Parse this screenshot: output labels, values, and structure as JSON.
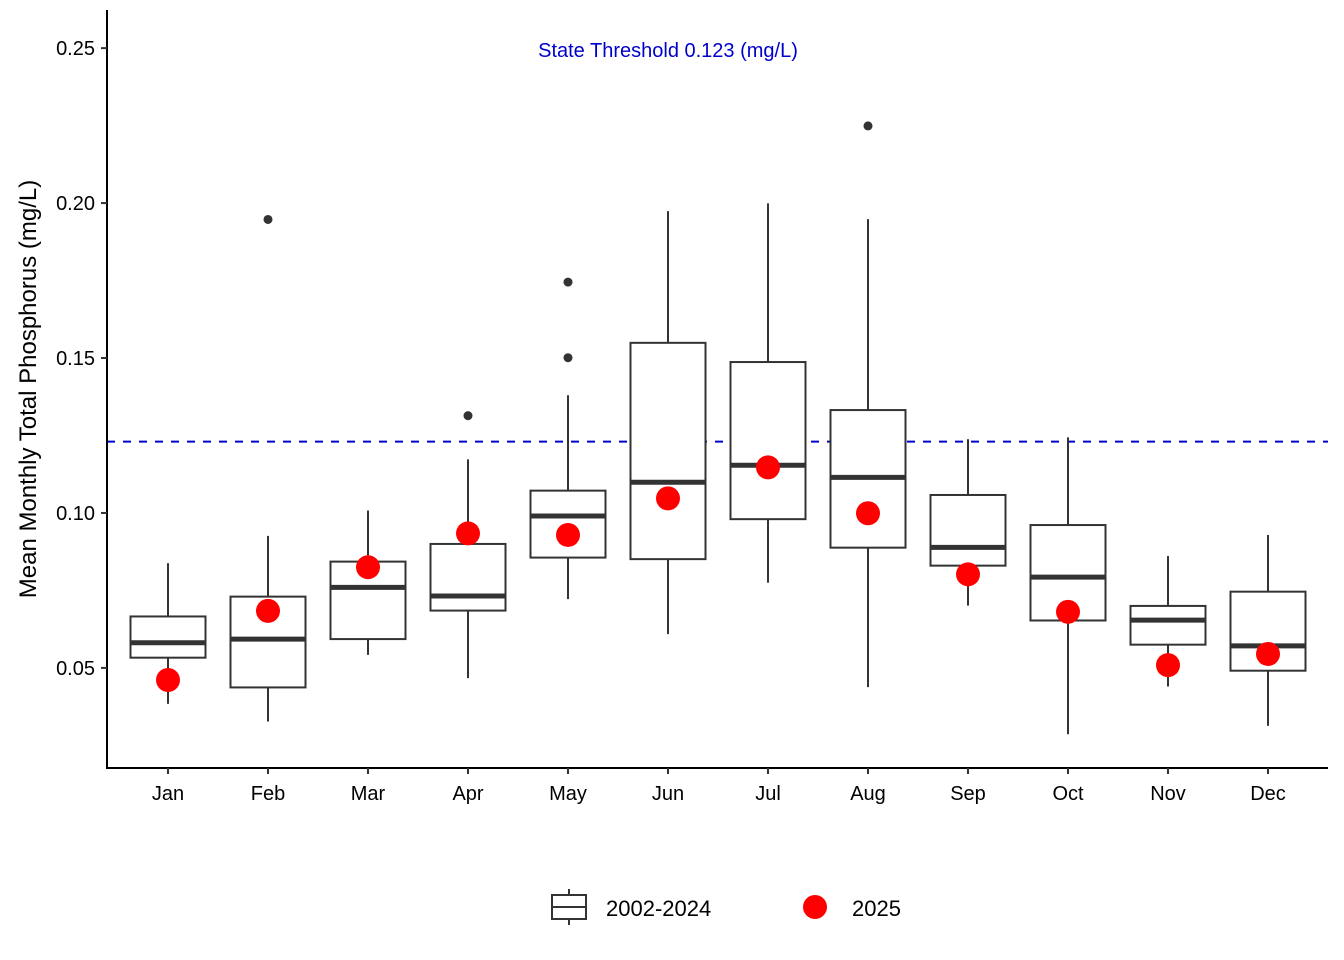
{
  "chart_data": {
    "type": "boxplot",
    "title": "",
    "xlabel": "",
    "ylabel": "Mean Monthly Total Phosphorus (mg/L)",
    "ylim": [
      0.0177,
      0.2623
    ],
    "yticks": [
      0.05,
      0.1,
      0.15,
      0.2,
      0.25
    ],
    "ytick_labels": [
      "0.05",
      "0.10",
      "0.15",
      "0.20",
      "0.25"
    ],
    "grid": false,
    "categories": [
      "Jan",
      "Feb",
      "Mar",
      "Apr",
      "May",
      "Jun",
      "Jul",
      "Aug",
      "Sep",
      "Oct",
      "Nov",
      "Dec"
    ],
    "series": [
      {
        "name": "2002-2024",
        "kind": "box",
        "color": "#333333",
        "boxes": [
          {
            "whisker_low": 0.0384,
            "q1": 0.0533,
            "median": 0.0581,
            "q3": 0.0666,
            "whisker_high": 0.0838,
            "outliers": []
          },
          {
            "whisker_low": 0.0327,
            "q1": 0.0437,
            "median": 0.0593,
            "q3": 0.073,
            "whisker_high": 0.0926,
            "outliers": [
              0.1947
            ]
          },
          {
            "whisker_low": 0.0542,
            "q1": 0.0593,
            "median": 0.076,
            "q3": 0.0843,
            "whisker_high": 0.1008,
            "outliers": []
          },
          {
            "whisker_low": 0.0467,
            "q1": 0.0685,
            "median": 0.0732,
            "q3": 0.09,
            "whisker_high": 0.1173,
            "outliers": [
              0.1314
            ]
          },
          {
            "whisker_low": 0.0722,
            "q1": 0.0856,
            "median": 0.099,
            "q3": 0.1072,
            "whisker_high": 0.138,
            "outliers": [
              0.1501,
              0.1745
            ]
          },
          {
            "whisker_low": 0.0609,
            "q1": 0.0851,
            "median": 0.1099,
            "q3": 0.1549,
            "whisker_high": 0.1974,
            "outliers": []
          },
          {
            "whisker_low": 0.0775,
            "q1": 0.098,
            "median": 0.1154,
            "q3": 0.1487,
            "whisker_high": 0.1999,
            "outliers": []
          },
          {
            "whisker_low": 0.0438,
            "q1": 0.0888,
            "median": 0.1115,
            "q3": 0.1332,
            "whisker_high": 0.1948,
            "outliers": [
              0.2249
            ]
          },
          {
            "whisker_low": 0.0701,
            "q1": 0.083,
            "median": 0.0889,
            "q3": 0.1058,
            "whisker_high": 0.1238,
            "outliers": []
          },
          {
            "whisker_low": 0.0286,
            "q1": 0.0653,
            "median": 0.0793,
            "q3": 0.0961,
            "whisker_high": 0.1244,
            "outliers": []
          },
          {
            "whisker_low": 0.044,
            "q1": 0.0575,
            "median": 0.0654,
            "q3": 0.07,
            "whisker_high": 0.0861,
            "outliers": []
          },
          {
            "whisker_low": 0.0313,
            "q1": 0.0491,
            "median": 0.0571,
            "q3": 0.0746,
            "whisker_high": 0.0929,
            "outliers": []
          }
        ]
      },
      {
        "name": "2025",
        "kind": "point",
        "color": "#ff0000",
        "values": [
          0.0461,
          0.0684,
          0.0825,
          0.0934,
          0.0929,
          0.1047,
          0.1147,
          0.0999,
          0.0802,
          0.0681,
          0.0509,
          0.0545
        ]
      }
    ],
    "threshold": {
      "value": 0.123,
      "label": "State Threshold 0.123 (mg/L)",
      "color": "#0000cc",
      "style": "dashed",
      "label_anchor_category": "Jun"
    },
    "legend": {
      "position": "bottom",
      "entries": [
        {
          "label": "2002-2024",
          "symbol": "box"
        },
        {
          "label": "2025",
          "symbol": "point"
        }
      ]
    }
  }
}
